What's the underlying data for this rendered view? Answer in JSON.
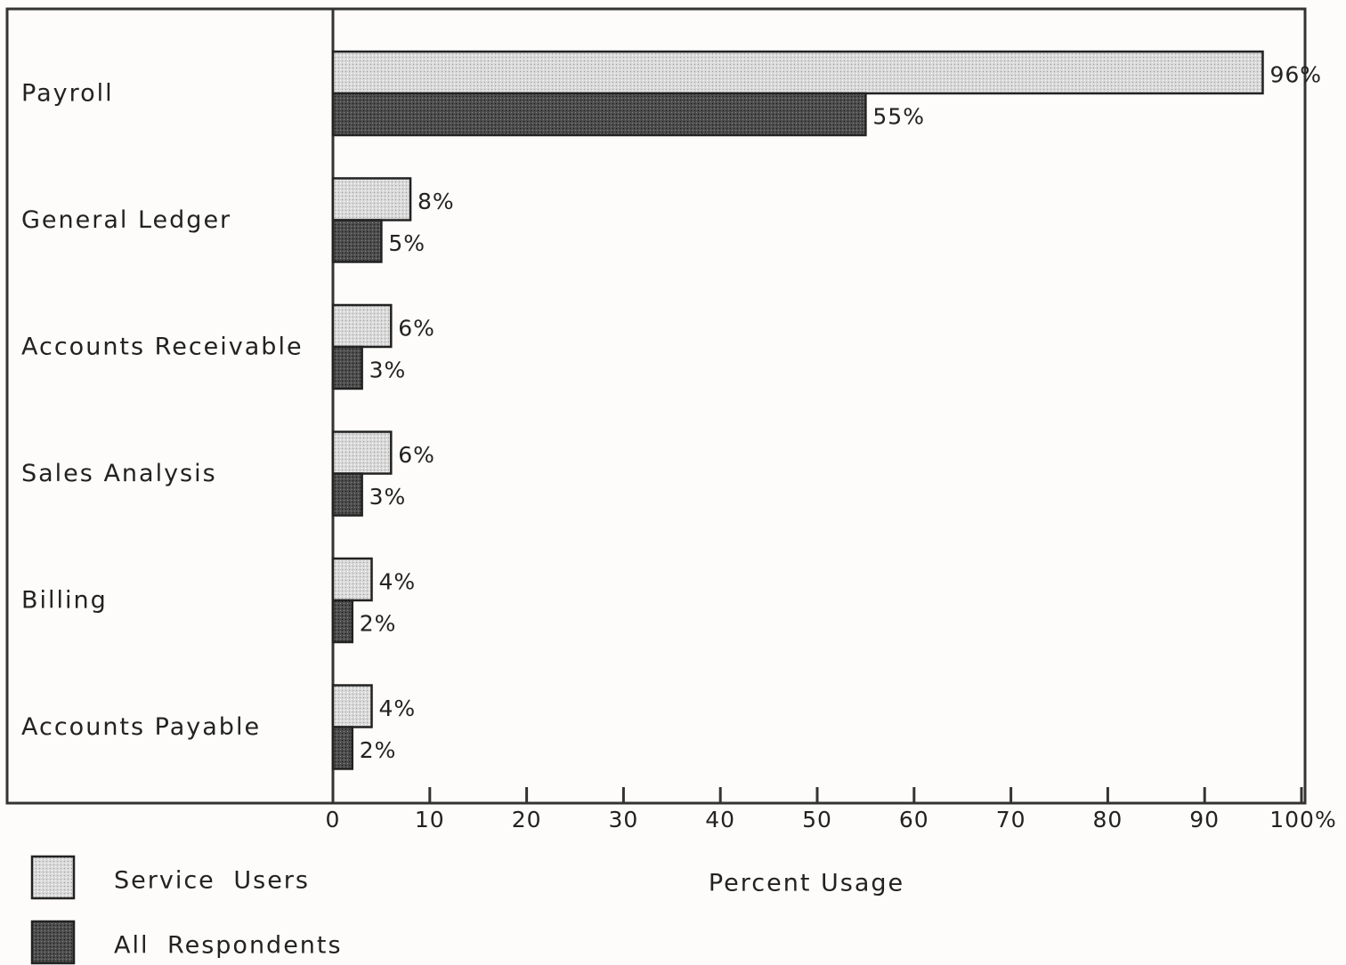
{
  "chart_data": {
    "type": "bar",
    "orientation": "horizontal",
    "xlabel": "Percent Usage",
    "categories": [
      "Payroll",
      "General Ledger",
      "Accounts Receivable",
      "Sales Analysis",
      "Billing",
      "Accounts Payable"
    ],
    "series": [
      {
        "name": "Service Users",
        "color": "#d9d9d9",
        "values": [
          96,
          8,
          6,
          6,
          4,
          4
        ],
        "value_labels": [
          "96%",
          "8%",
          "6%",
          "6%",
          "4%",
          "4%"
        ]
      },
      {
        "name": "All Respondents",
        "color": "#4d4d4d",
        "values": [
          55,
          5,
          3,
          3,
          2,
          2
        ],
        "value_labels": [
          "55%",
          "5%",
          "3%",
          "3%",
          "2%",
          "2%"
        ]
      }
    ],
    "xlim": [
      0,
      100
    ],
    "xticks": [
      0,
      10,
      20,
      30,
      40,
      50,
      60,
      70,
      80,
      90,
      {
        "value": 100,
        "label": "100%"
      }
    ],
    "legend": "bottom-left"
  }
}
